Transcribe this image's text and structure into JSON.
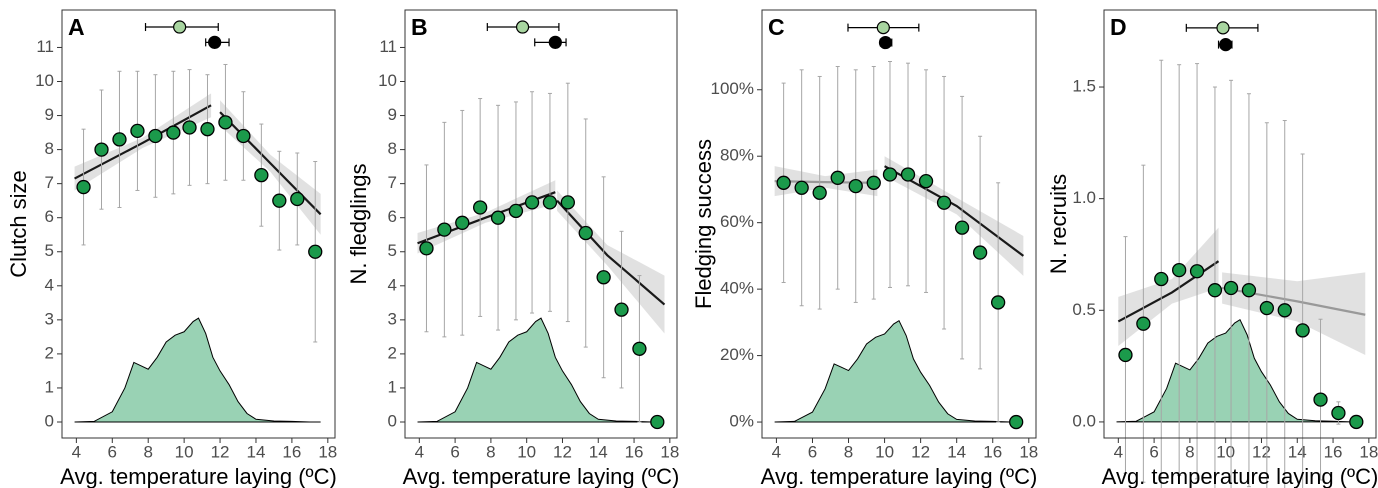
{
  "chart_data": [
    {
      "type": "scatter",
      "panel": "A",
      "y_label": "Clutch size",
      "x_label": "Avg. temperature laying (ºC)",
      "x": [
        4.4,
        5.4,
        6.4,
        7.4,
        8.4,
        9.4,
        10.3,
        11.3,
        12.3,
        13.3,
        14.3,
        15.3,
        16.3,
        17.3
      ],
      "values": [
        6.9,
        8.0,
        8.3,
        8.55,
        8.4,
        8.5,
        8.65,
        8.6,
        8.8,
        8.4,
        7.25,
        6.5,
        6.55,
        5.0
      ],
      "errors": [
        1.7,
        1.75,
        2.0,
        1.75,
        1.8,
        1.8,
        1.7,
        1.6,
        1.7,
        1.3,
        1.5,
        1.45,
        1.35,
        2.65
      ],
      "fits": [
        {
          "color": "#1a1a1a",
          "x": [
            3.9,
            7.7,
            11.5
          ],
          "y": [
            7.15,
            8.2,
            9.3
          ],
          "lower": [
            6.8,
            8.05,
            8.95
          ],
          "upper": [
            7.5,
            8.35,
            9.65
          ]
        },
        {
          "color": "#1a1a1a",
          "x": [
            12,
            14.8,
            17.6
          ],
          "y": [
            9.1,
            7.6,
            6.1
          ],
          "lower": [
            8.7,
            7.35,
            5.5
          ],
          "upper": [
            9.45,
            7.85,
            6.7
          ]
        }
      ],
      "density": {
        "x": [
          3.9,
          5,
          6,
          6.7,
          7.2,
          7.6,
          8,
          8.5,
          9,
          9.5,
          10,
          10.5,
          10.8,
          11.2,
          11.6,
          12,
          12.5,
          13,
          13.5,
          14,
          15,
          16,
          17,
          17.6
        ],
        "y": [
          0,
          0.02,
          0.3,
          1.0,
          1.75,
          1.65,
          1.55,
          1.9,
          2.35,
          2.55,
          2.65,
          2.95,
          3.05,
          2.6,
          1.9,
          1.5,
          1.1,
          0.6,
          0.25,
          0.08,
          0.03,
          0.02,
          0,
          0
        ]
      },
      "markers": [
        {
          "color": "#a8d5a0",
          "x": 9.75,
          "xlow": 7.85,
          "xhigh": 11.9,
          "y": 11.6
        },
        {
          "color": "#000000",
          "x": 11.7,
          "xlow": 11.2,
          "xhigh": 12.5,
          "y": 11.15
        }
      ],
      "xlim": [
        3.2,
        18.4
      ],
      "ylim": [
        -0.47,
        12.1
      ],
      "xticks": [
        4,
        6,
        8,
        10,
        12,
        14,
        16,
        18
      ],
      "yticks": [
        0,
        1,
        2,
        3,
        4,
        5,
        6,
        7,
        8,
        9,
        10,
        11
      ],
      "point_color": "#1b9a4b",
      "error_color": "#a6a6a6",
      "density_color": "#99d2b4"
    },
    {
      "type": "scatter",
      "panel": "B",
      "y_label": "N. fledglings",
      "x_label": "Avg. temperature laying (ºC)",
      "x": [
        4.4,
        5.4,
        6.4,
        7.4,
        8.4,
        9.4,
        10.3,
        11.3,
        12.3,
        13.3,
        14.3,
        15.3,
        16.3,
        17.3
      ],
      "values": [
        5.1,
        5.65,
        5.85,
        6.3,
        6.0,
        6.2,
        6.45,
        6.45,
        6.45,
        5.55,
        4.25,
        3.3,
        2.15,
        0.0
      ],
      "errors": [
        2.45,
        3.15,
        3.3,
        3.2,
        3.3,
        3.2,
        3.25,
        3.2,
        3.5,
        3.35,
        2.95,
        2.3,
        2.15,
        0
      ],
      "fits": [
        {
          "color": "#1a1a1a",
          "x": [
            3.9,
            7.7,
            11.6
          ],
          "y": [
            5.25,
            6.0,
            6.75
          ],
          "lower": [
            4.95,
            5.85,
            6.4
          ],
          "upper": [
            5.55,
            6.15,
            7.1
          ]
        },
        {
          "color": "#1a1a1a",
          "x": [
            11.7,
            14.5,
            17.7
          ],
          "y": [
            6.5,
            4.9,
            3.45
          ],
          "lower": [
            6.2,
            4.6,
            2.6
          ],
          "upper": [
            6.8,
            5.2,
            4.3
          ]
        }
      ],
      "density": {
        "x": [
          3.9,
          5,
          6,
          6.7,
          7.2,
          7.6,
          8,
          8.5,
          9,
          9.5,
          10,
          10.5,
          10.8,
          11.2,
          11.6,
          12,
          12.5,
          13,
          13.5,
          14,
          15,
          16,
          17,
          17.6
        ],
        "y": [
          0,
          0.02,
          0.3,
          1.0,
          1.75,
          1.65,
          1.55,
          1.9,
          2.35,
          2.55,
          2.65,
          2.95,
          3.05,
          2.6,
          1.9,
          1.5,
          1.1,
          0.6,
          0.25,
          0.08,
          0.03,
          0.02,
          0,
          0
        ]
      },
      "markers": [
        {
          "color": "#a8d5a0",
          "x": 9.77,
          "xlow": 7.8,
          "xhigh": 11.8,
          "y": 11.6
        },
        {
          "color": "#000000",
          "x": 11.6,
          "xlow": 10.45,
          "xhigh": 12.2,
          "y": 11.15
        }
      ],
      "xlim": [
        3.2,
        18.4
      ],
      "ylim": [
        -0.47,
        12.1
      ],
      "xticks": [
        4,
        6,
        8,
        10,
        12,
        14,
        16,
        18
      ],
      "yticks": [
        0,
        1,
        2,
        3,
        4,
        5,
        6,
        7,
        8,
        9,
        10,
        11
      ],
      "point_color": "#1b9a4b",
      "error_color": "#a6a6a6",
      "density_color": "#99d2b4"
    },
    {
      "type": "scatter",
      "panel": "C",
      "y_label": "Fledging success",
      "x_label": "Avg. temperature laying (ºC)",
      "x": [
        4.4,
        5.4,
        6.4,
        7.4,
        8.4,
        9.4,
        10.3,
        11.3,
        12.3,
        13.3,
        14.3,
        15.3,
        16.3,
        17.3
      ],
      "values": [
        72,
        70.5,
        69,
        73.5,
        71,
        72,
        74.5,
        74.5,
        72.5,
        66,
        58.5,
        51,
        36,
        0
      ],
      "errors": [
        30,
        35.5,
        35,
        33.5,
        35,
        35,
        34,
        33.5,
        33.5,
        38,
        39.5,
        35,
        36,
        0
      ],
      "fits": [
        {
          "color": "#999999",
          "x": [
            3.9,
            6.7,
            9.6
          ],
          "y": [
            72.5,
            72.2,
            72
          ],
          "lower": [
            68,
            70.5,
            68
          ],
          "upper": [
            77,
            74,
            76
          ]
        },
        {
          "color": "#1a1a1a",
          "x": [
            10,
            14,
            17.7
          ],
          "y": [
            77,
            65,
            50
          ],
          "lower": [
            74,
            62.5,
            44
          ],
          "upper": [
            80,
            67.5,
            56
          ]
        }
      ],
      "density": {
        "x": [
          3.9,
          5,
          6,
          6.7,
          7.2,
          7.6,
          8,
          8.5,
          9,
          9.5,
          10,
          10.5,
          10.8,
          11.2,
          11.6,
          12,
          12.5,
          13,
          13.5,
          14,
          15,
          16,
          17,
          17.6
        ],
        "y": [
          0,
          0.2,
          3,
          10,
          17.5,
          16.5,
          15.5,
          19,
          23.5,
          25.5,
          26.5,
          29.5,
          30.5,
          26,
          19,
          15,
          11,
          6,
          2.5,
          0.8,
          0.3,
          0.2,
          0,
          0
        ]
      },
      "markers": [
        {
          "color": "#a8d5a0",
          "x": 9.93,
          "xlow": 7.97,
          "xhigh": 11.9,
          "y": 118.7
        },
        {
          "color": "#000000",
          "x": 10.05,
          "xlow": 9.77,
          "xhigh": 10.4,
          "y": 114.2
        }
      ],
      "xlim": [
        3.2,
        18.4
      ],
      "ylim": [
        -4.8,
        124
      ],
      "xticks": [
        4,
        6,
        8,
        10,
        12,
        14,
        16,
        18
      ],
      "yticks": [
        {
          "value": 0,
          "label": "0%"
        },
        {
          "value": 20,
          "label": "20%"
        },
        {
          "value": 40,
          "label": "40%"
        },
        {
          "value": 60,
          "label": "60%"
        },
        {
          "value": 80,
          "label": "80%"
        },
        {
          "value": 100,
          "label": "100%"
        }
      ],
      "point_color": "#1b9a4b",
      "error_color": "#a6a6a6",
      "density_color": "#99d2b4"
    },
    {
      "type": "scatter",
      "panel": "D",
      "y_label": "N. recruits",
      "x_label": "Avg. temperature laying (ºC)",
      "x": [
        4.4,
        5.4,
        6.4,
        7.4,
        8.4,
        9.4,
        10.3,
        11.3,
        12.3,
        13.3,
        14.3,
        15.3,
        16.3,
        17.3
      ],
      "values": [
        0.3,
        0.44,
        0.64,
        0.68,
        0.675,
        0.59,
        0.6,
        0.59,
        0.51,
        0.5,
        0.41,
        0.1,
        0.04,
        0.0
      ],
      "errors": [
        0.53,
        0.71,
        0.98,
        0.92,
        0.93,
        0.91,
        0.93,
        0.88,
        0.83,
        0.85,
        0.79,
        0.36,
        0.05,
        0
      ],
      "fits": [
        {
          "color": "#1a1a1a",
          "x": [
            4,
            7,
            9.6
          ],
          "y": [
            0.45,
            0.58,
            0.72
          ],
          "lower": [
            0.34,
            0.53,
            0.6
          ],
          "upper": [
            0.56,
            0.64,
            0.87
          ]
        },
        {
          "color": "#999999",
          "x": [
            9.8,
            14,
            17.8
          ],
          "y": [
            0.6,
            0.54,
            0.48
          ],
          "lower": [
            0.53,
            0.45,
            0.3
          ],
          "upper": [
            0.67,
            0.63,
            0.67
          ]
        }
      ],
      "density": {
        "x": [
          3.9,
          5,
          6,
          6.7,
          7.2,
          7.6,
          8,
          8.5,
          9,
          9.5,
          10,
          10.5,
          10.8,
          11.2,
          11.6,
          12,
          12.5,
          13,
          13.5,
          14,
          15,
          16,
          17,
          17.6
        ],
        "y": [
          0,
          0.003,
          0.045,
          0.15,
          0.263,
          0.248,
          0.233,
          0.285,
          0.353,
          0.383,
          0.398,
          0.443,
          0.458,
          0.39,
          0.285,
          0.225,
          0.165,
          0.09,
          0.038,
          0.012,
          0.005,
          0.003,
          0,
          0
        ]
      },
      "markers": [
        {
          "color": "#a8d5a0",
          "x": 9.85,
          "xlow": 7.8,
          "xhigh": 11.8,
          "y": 1.765
        },
        {
          "color": "#000000",
          "x": 10.0,
          "xlow": 9.6,
          "xhigh": 10.35,
          "y": 1.69
        }
      ],
      "xlim": [
        3.2,
        18.4
      ],
      "ylim": [
        -0.072,
        1.845
      ],
      "xticks": [
        4,
        6,
        8,
        10,
        12,
        14,
        16,
        18
      ],
      "yticks": [
        {
          "value": 0,
          "label": "0.0"
        },
        0.5,
        {
          "value": 1,
          "label": "1.0"
        },
        1.5
      ],
      "point_color": "#1b9a4b",
      "error_color": "#a6a6a6",
      "density_color": "#99d2b4"
    }
  ]
}
